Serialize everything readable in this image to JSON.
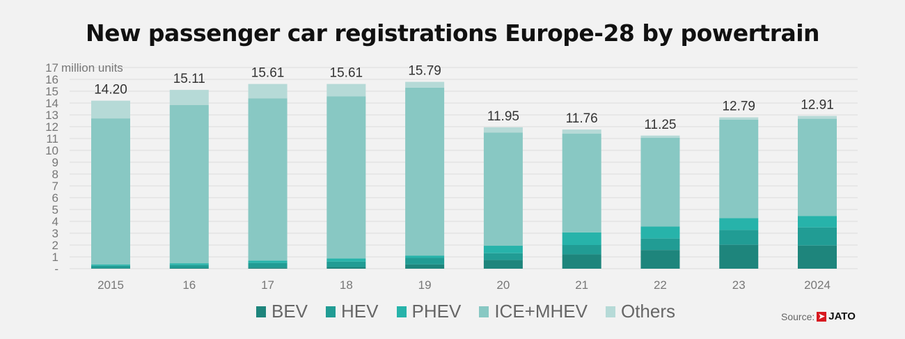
{
  "chart_data": {
    "type": "bar",
    "stacked": true,
    "title": "New passenger car registrations Europe-28 by powertrain",
    "ylabel": "million units",
    "ylim": [
      0,
      17
    ],
    "yticks": [
      "-",
      "1",
      "2",
      "3",
      "4",
      "5",
      "6",
      "7",
      "8",
      "9",
      "10",
      "11",
      "12",
      "13",
      "14",
      "15",
      "16",
      "17"
    ],
    "grid": true,
    "legend_position": "bottom",
    "categories": [
      "2015",
      "16",
      "17",
      "18",
      "19",
      "20",
      "21",
      "22",
      "23",
      "2024"
    ],
    "totals": [
      "14.20",
      "15.11",
      "15.61",
      "15.61",
      "15.79",
      "11.95",
      "11.76",
      "11.25",
      "12.79",
      "12.91"
    ],
    "series": [
      {
        "name": "BEV",
        "color": "#1e857c",
        "values": [
          0.05,
          0.06,
          0.1,
          0.15,
          0.36,
          0.73,
          1.21,
          1.58,
          2.02,
          1.96
        ]
      },
      {
        "name": "HEV",
        "color": "#219c94",
        "values": [
          0.2,
          0.25,
          0.38,
          0.45,
          0.55,
          0.58,
          0.79,
          0.97,
          1.25,
          1.53
        ]
      },
      {
        "name": "PHEV",
        "color": "#27b3aa",
        "values": [
          0.1,
          0.15,
          0.2,
          0.27,
          0.2,
          0.63,
          1.07,
          1.01,
          1.01,
          0.97
        ]
      },
      {
        "name": "ICE+MHEV",
        "color": "#88c8c3",
        "values": [
          12.35,
          13.38,
          13.72,
          13.69,
          14.19,
          9.57,
          8.34,
          7.5,
          8.32,
          8.21
        ]
      },
      {
        "name": "Others",
        "color": "#b6dad7",
        "values": [
          1.5,
          1.27,
          1.21,
          1.05,
          0.49,
          0.44,
          0.35,
          0.19,
          0.19,
          0.24
        ]
      }
    ]
  },
  "source": {
    "label": "Source:",
    "brand": "JATO"
  }
}
